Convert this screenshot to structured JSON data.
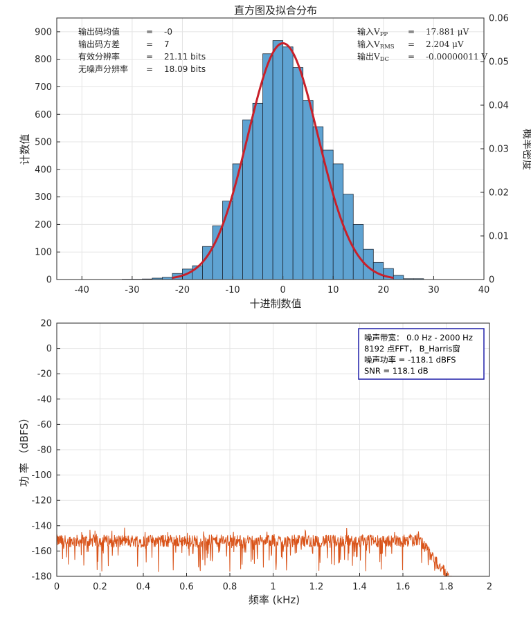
{
  "colors": {
    "hist_fill": "#5fa3d2",
    "hist_edge": "#1e2a38",
    "fit_line": "#c8202a",
    "psd_line": "#d95319",
    "legend_border": "#1f1fa8",
    "grid": "#e4e4e4",
    "axis": "#262626"
  },
  "chart_data": [
    {
      "type": "bar",
      "title": "直方图及拟合分布",
      "xlabel": "十进制数值",
      "ylabel": "计数值",
      "y2label": "概率密度",
      "xlim": [
        -45,
        40
      ],
      "ylim": [
        0,
        950
      ],
      "y2lim": [
        0,
        0.06
      ],
      "xticks": [
        "-40",
        "-30",
        "-20",
        "-10",
        "0",
        "10",
        "20",
        "30",
        "40"
      ],
      "yticks": [
        "0",
        "100",
        "200",
        "300",
        "400",
        "500",
        "600",
        "700",
        "800",
        "900"
      ],
      "y2ticks": [
        "0",
        "0.01",
        "0.02",
        "0.03",
        "0.04",
        "0.05",
        "0.06"
      ],
      "bin_width": 2,
      "bin_left_edges": [
        -32,
        -30,
        -28,
        -26,
        -24,
        -22,
        -20,
        -18,
        -16,
        -14,
        -12,
        -10,
        -8,
        -6,
        -4,
        -2,
        0,
        2,
        4,
        6,
        8,
        10,
        12,
        14,
        16,
        18,
        20,
        22,
        24,
        26
      ],
      "counts": [
        1,
        1,
        2,
        5,
        8,
        22,
        38,
        50,
        120,
        195,
        285,
        420,
        580,
        640,
        820,
        868,
        845,
        770,
        650,
        555,
        470,
        420,
        310,
        200,
        110,
        62,
        40,
        15,
        3,
        3
      ],
      "fit": {
        "name": "normal",
        "mean": 0,
        "std": 7,
        "peak_density": 0.0542
      },
      "stats_left": [
        {
          "label": "输出码均值",
          "eq": "=",
          "value": "-0"
        },
        {
          "label": "输出码方差",
          "eq": "=",
          "value": "7"
        },
        {
          "label": "有效分辨率",
          "eq": "=",
          "value": "21.11 bits"
        },
        {
          "label": "无噪声分辨率",
          "eq": "=",
          "value": "18.09 bits"
        }
      ],
      "stats_right": [
        {
          "label": "输入",
          "sub": "V",
          "subsub": "PP",
          "eq": "=",
          "value": "17.881 μV"
        },
        {
          "label": "输入",
          "sub": "V",
          "subsub": "RMS",
          "eq": "=",
          "value": "2.204 μV"
        },
        {
          "label": "输出",
          "sub": "V",
          "subsub": "DC",
          "eq": "=",
          "value": "-0.00000011 V"
        }
      ]
    },
    {
      "type": "line",
      "xlabel": "频率 (kHz)",
      "ylabel": "功 率 （dBFS）",
      "xlim": [
        0,
        2
      ],
      "ylim": [
        -180,
        20
      ],
      "xticks": [
        "0",
        "0.2",
        "0.4",
        "0.6",
        "0.8",
        "1",
        "1.2",
        "1.4",
        "1.6",
        "1.8",
        "2"
      ],
      "yticks": [
        "20",
        "0",
        "-20",
        "-40",
        "-60",
        "-80",
        "-100",
        "-120",
        "-140",
        "-160",
        "-180"
      ],
      "noise_floor_db": -152,
      "rolloff_start_khz": 1.68,
      "rolloff_end_khz": 1.86,
      "legend": [
        "噪声带宽：  0.0 Hz - 2000 Hz",
        "8192 点FFT， B_Harris窗",
        "噪声功率 = -118.1 dBFS",
        "SNR = 118.1 dB"
      ]
    }
  ]
}
